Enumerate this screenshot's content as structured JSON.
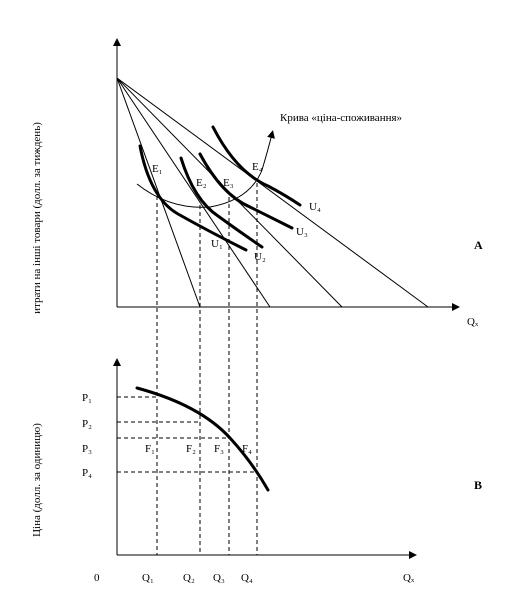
{
  "panel_a": {
    "label": "A",
    "y_axis_label": "итрати на інші товари (долл. за тиждень)",
    "x_axis_label": "Qₓ",
    "points": [
      "E₁",
      "E₂",
      "E₃",
      "E₄"
    ],
    "curves": [
      "U₁",
      "U₂",
      "U₃",
      "U₄"
    ],
    "curve_label": "Крива «ціна-споживання»"
  },
  "panel_b": {
    "label": "B",
    "y_axis_label": "Ціна (долл. за одиницю)",
    "x_axis_label": "Qₓ",
    "origin": "0",
    "prices": [
      "P₁",
      "P₂",
      "P₃",
      "P₄"
    ],
    "points": [
      "F₁",
      "F₂",
      "F₃",
      "F₄"
    ],
    "quantities": [
      "Q₁",
      "Q₂",
      "Q₃",
      "Q₄"
    ]
  }
}
